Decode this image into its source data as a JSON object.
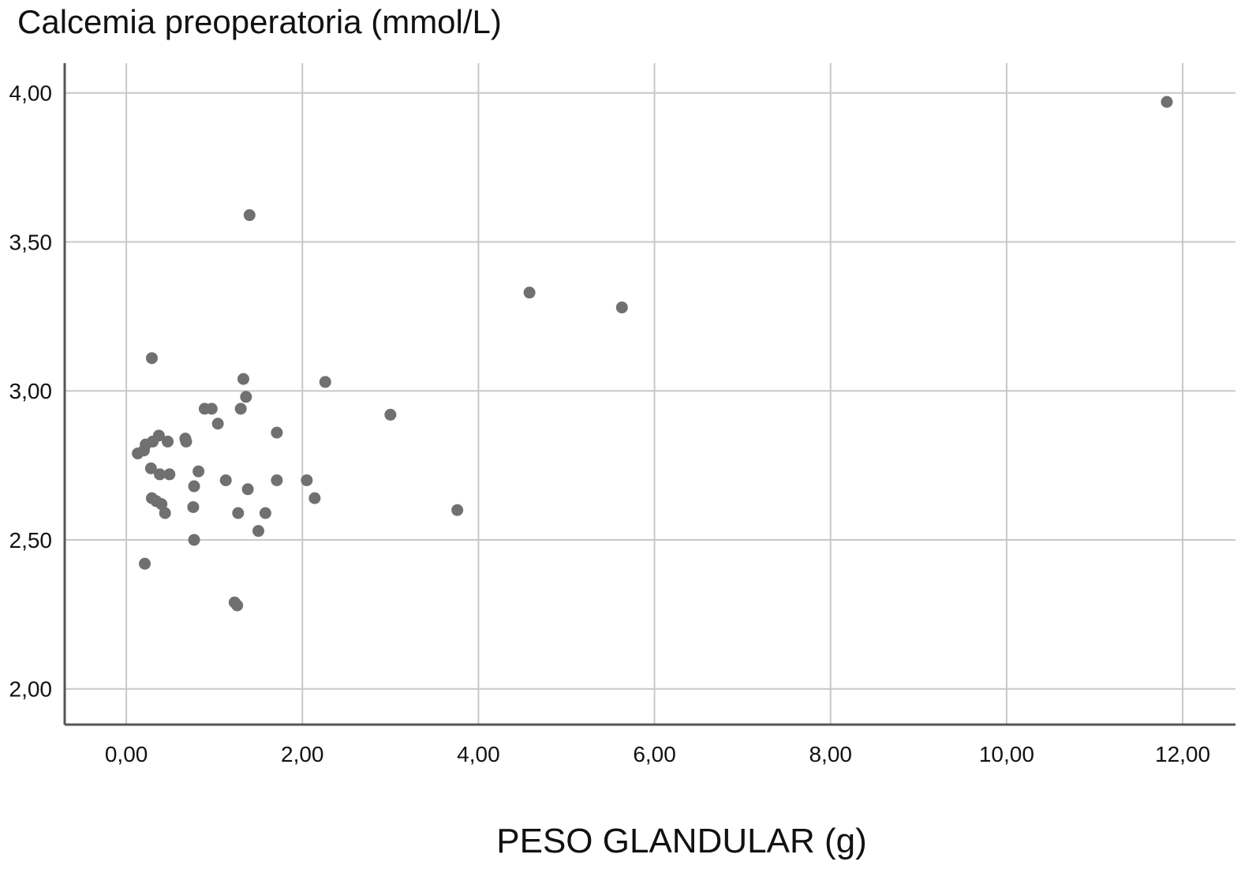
{
  "chart_data": {
    "type": "scatter",
    "title": "Calcemia preoperatoria (mmol/L)",
    "xlabel": "PESO GLANDULAR (g)",
    "ylabel": "",
    "xlim": [
      -0.7,
      12.6
    ],
    "ylim": [
      1.88,
      4.1
    ],
    "x_ticks": [
      0,
      2,
      4,
      6,
      8,
      10,
      12
    ],
    "x_tick_labels": [
      "0,00",
      "2,00",
      "4,00",
      "6,00",
      "8,00",
      "10,00",
      "12,00"
    ],
    "y_ticks": [
      2.0,
      2.5,
      3.0,
      3.5,
      4.0
    ],
    "y_tick_labels": [
      "2,00",
      "2,50",
      "3,00",
      "3,50",
      "4,00"
    ],
    "grid": true,
    "colors": {
      "point": "#707070",
      "grid": "#c8c8c8",
      "axis": "#555555"
    },
    "series": [
      {
        "points": [
          {
            "x": 0.13,
            "y": 2.79
          },
          {
            "x": 0.2,
            "y": 2.8
          },
          {
            "x": 0.22,
            "y": 2.82
          },
          {
            "x": 0.3,
            "y": 2.83
          },
          {
            "x": 0.37,
            "y": 2.85
          },
          {
            "x": 0.47,
            "y": 2.83
          },
          {
            "x": 0.67,
            "y": 2.84
          },
          {
            "x": 0.68,
            "y": 2.83
          },
          {
            "x": 0.28,
            "y": 2.74
          },
          {
            "x": 0.38,
            "y": 2.72
          },
          {
            "x": 0.49,
            "y": 2.72
          },
          {
            "x": 0.29,
            "y": 2.64
          },
          {
            "x": 0.34,
            "y": 2.63
          },
          {
            "x": 0.4,
            "y": 2.62
          },
          {
            "x": 0.44,
            "y": 2.59
          },
          {
            "x": 0.29,
            "y": 3.11
          },
          {
            "x": 0.21,
            "y": 2.42
          },
          {
            "x": 0.77,
            "y": 2.68
          },
          {
            "x": 0.82,
            "y": 2.73
          },
          {
            "x": 0.76,
            "y": 2.61
          },
          {
            "x": 0.77,
            "y": 2.5
          },
          {
            "x": 0.89,
            "y": 2.94
          },
          {
            "x": 0.97,
            "y": 2.94
          },
          {
            "x": 1.04,
            "y": 2.89
          },
          {
            "x": 1.13,
            "y": 2.7
          },
          {
            "x": 1.23,
            "y": 2.29
          },
          {
            "x": 1.26,
            "y": 2.28
          },
          {
            "x": 1.27,
            "y": 2.59
          },
          {
            "x": 1.3,
            "y": 2.94
          },
          {
            "x": 1.33,
            "y": 3.04
          },
          {
            "x": 1.36,
            "y": 2.98
          },
          {
            "x": 1.38,
            "y": 2.67
          },
          {
            "x": 1.4,
            "y": 3.59
          },
          {
            "x": 1.5,
            "y": 2.53
          },
          {
            "x": 1.58,
            "y": 2.59
          },
          {
            "x": 1.71,
            "y": 2.86
          },
          {
            "x": 1.71,
            "y": 2.7
          },
          {
            "x": 2.05,
            "y": 2.7
          },
          {
            "x": 2.14,
            "y": 2.64
          },
          {
            "x": 2.26,
            "y": 3.03
          },
          {
            "x": 3.0,
            "y": 2.92
          },
          {
            "x": 3.76,
            "y": 2.6
          },
          {
            "x": 4.58,
            "y": 3.33
          },
          {
            "x": 5.63,
            "y": 3.28
          },
          {
            "x": 11.82,
            "y": 3.97
          }
        ]
      }
    ]
  }
}
